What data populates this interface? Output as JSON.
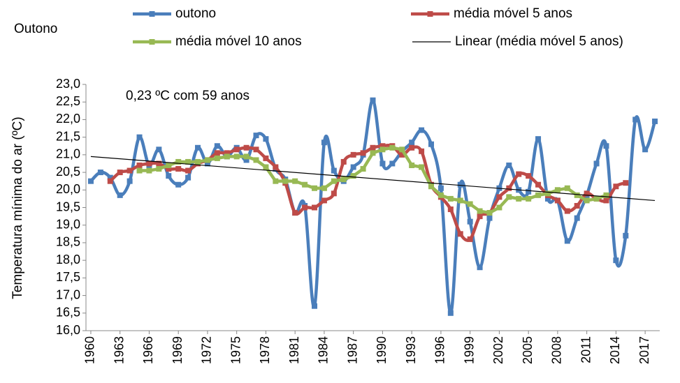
{
  "chart_data": {
    "type": "line",
    "title": "Outono",
    "annotation": "0,23 ºC  com 59 anos",
    "y_label": "Temperatura mínima do ar (ºC)",
    "x": [
      1960,
      1961,
      1962,
      1963,
      1964,
      1965,
      1966,
      1967,
      1968,
      1969,
      1970,
      1971,
      1972,
      1973,
      1974,
      1975,
      1976,
      1977,
      1978,
      1979,
      1980,
      1981,
      1982,
      1983,
      1984,
      1985,
      1986,
      1987,
      1988,
      1989,
      1990,
      1991,
      1992,
      1993,
      1994,
      1995,
      1996,
      1997,
      1998,
      1999,
      2000,
      2001,
      2002,
      2003,
      2004,
      2005,
      2006,
      2007,
      2008,
      2009,
      2010,
      2011,
      2012,
      2013,
      2014,
      2015,
      2016,
      2017,
      2018
    ],
    "series": [
      {
        "name": "outono",
        "color": "#4a7ebb",
        "smooth": true,
        "values": [
          20.25,
          20.5,
          20.35,
          19.85,
          20.25,
          21.5,
          20.7,
          21.15,
          20.4,
          20.15,
          20.35,
          21.2,
          20.75,
          21.25,
          20.95,
          21.2,
          20.85,
          21.55,
          21.45,
          20.6,
          20.3,
          19.35,
          19.55,
          16.7,
          21.35,
          20.55,
          20.25,
          20.65,
          21.0,
          22.55,
          20.75,
          20.75,
          21.1,
          21.35,
          21.7,
          21.3,
          20.05,
          16.5,
          20.15,
          19.1,
          17.8,
          19.2,
          20.05,
          20.7,
          20.0,
          19.95,
          21.45,
          19.75,
          19.7,
          18.55,
          19.2,
          19.85,
          20.75,
          21.25,
          18.0,
          18.7,
          22.0,
          21.15,
          21.95
        ]
      },
      {
        "name": "média móvel 5 anos",
        "color": "#be4b48",
        "smooth": true,
        "values": [
          null,
          null,
          20.25,
          20.5,
          20.55,
          20.7,
          20.75,
          20.75,
          20.6,
          20.6,
          20.55,
          20.75,
          20.85,
          21.05,
          21.05,
          21.15,
          21.2,
          21.15,
          20.9,
          20.65,
          20.2,
          19.35,
          19.5,
          19.5,
          19.7,
          19.9,
          20.8,
          21.0,
          21.05,
          21.2,
          21.25,
          21.25,
          21.0,
          21.2,
          21.1,
          20.15,
          19.8,
          19.45,
          18.75,
          18.6,
          19.25,
          19.35,
          19.8,
          20.05,
          20.45,
          20.4,
          20.15,
          19.85,
          19.7,
          19.4,
          19.55,
          19.9,
          19.75,
          19.7,
          20.1,
          20.2,
          null,
          null,
          null
        ]
      },
      {
        "name": "média móvel 10 anos",
        "color": "#98b954",
        "smooth": false,
        "values": [
          null,
          null,
          null,
          null,
          null,
          20.55,
          20.55,
          20.6,
          20.7,
          20.8,
          20.8,
          20.8,
          20.85,
          20.9,
          20.95,
          20.95,
          20.95,
          20.85,
          20.65,
          20.25,
          20.25,
          20.25,
          20.15,
          20.05,
          20.05,
          20.25,
          20.3,
          20.4,
          20.6,
          21.05,
          21.15,
          21.2,
          21.15,
          20.7,
          20.65,
          20.1,
          19.85,
          19.75,
          19.7,
          19.6,
          19.4,
          19.35,
          19.5,
          19.8,
          19.75,
          19.75,
          19.85,
          19.9,
          20.0,
          20.05,
          19.85,
          19.7,
          19.75,
          19.85,
          null,
          null,
          null,
          null,
          null
        ]
      }
    ],
    "trendline": {
      "name": "Linear (média móvel 5 anos)",
      "color": "#000000",
      "x": [
        1960,
        2018
      ],
      "values": [
        20.95,
        19.7
      ]
    },
    "xlim": [
      1959.5,
      2018.5
    ],
    "xticks": [
      1960,
      1963,
      1966,
      1969,
      1972,
      1975,
      1978,
      1981,
      1984,
      1987,
      1990,
      1993,
      1996,
      1999,
      2002,
      2005,
      2008,
      2011,
      2014,
      2017
    ],
    "ylim": [
      16,
      23
    ],
    "yticks": [
      {
        "value": 16,
        "label": "16,0"
      },
      {
        "value": 16.5,
        "label": "16,5"
      },
      {
        "value": 17,
        "label": "17,0"
      },
      {
        "value": 17.5,
        "label": "17,5"
      },
      {
        "value": 18,
        "label": "18,0"
      },
      {
        "value": 18.5,
        "label": "18,5"
      },
      {
        "value": 19,
        "label": "19,0"
      },
      {
        "value": 19.5,
        "label": "19,5"
      },
      {
        "value": 20,
        "label": "20,0"
      },
      {
        "value": 20.5,
        "label": "20,5"
      },
      {
        "value": 21,
        "label": "21,0"
      },
      {
        "value": 21.5,
        "label": "21,5"
      },
      {
        "value": 22,
        "label": "22,0"
      },
      {
        "value": 22.5,
        "label": "22,5"
      },
      {
        "value": 23,
        "label": "23,0"
      }
    ]
  }
}
